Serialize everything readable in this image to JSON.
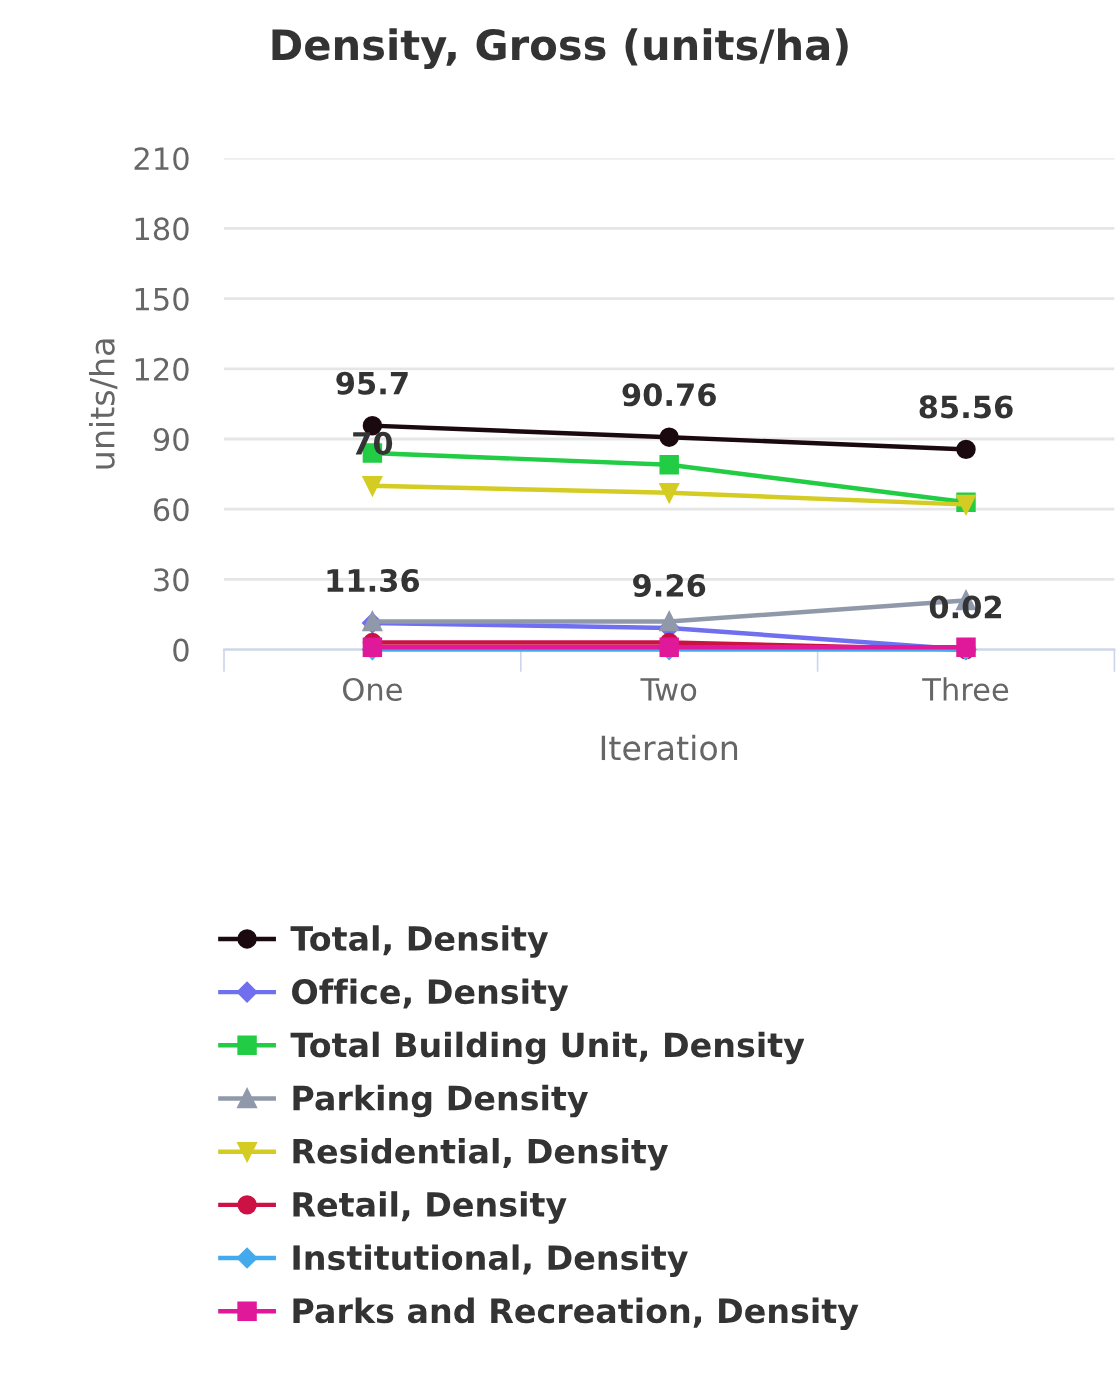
{
  "chart_data": {
    "type": "line",
    "title": "Density, Gross (units/ha)",
    "xlabel": "Iteration",
    "ylabel": "units/ha",
    "categories": [
      "One",
      "Two",
      "Three"
    ],
    "ylim": [
      0,
      210
    ],
    "yticks": [
      0,
      30,
      60,
      90,
      120,
      150,
      180,
      210
    ],
    "grid": "y",
    "legend": "bottom",
    "series": [
      {
        "name": "Total, Density",
        "color": "#1a0a10",
        "marker": "circle",
        "values": [
          95.7,
          90.76,
          85.56
        ],
        "value_labels": [
          "95.7",
          "90.76",
          "85.56"
        ]
      },
      {
        "name": "Office, Density",
        "color": "#6f6fef",
        "marker": "diamond",
        "values": [
          11.36,
          9.26,
          0.02
        ],
        "value_labels": [
          "11.36",
          "9.26",
          "0.02"
        ]
      },
      {
        "name": "Total Building Unit, Density",
        "color": "#22cc44",
        "marker": "square",
        "values": [
          84,
          79,
          63
        ]
      },
      {
        "name": "Parking Density",
        "color": "#9099aa",
        "marker": "triangle",
        "values": [
          12,
          12,
          21
        ]
      },
      {
        "name": "Residential, Density",
        "color": "#d4cc22",
        "marker": "triangle-down",
        "values": [
          70,
          67,
          62
        ],
        "value_labels": [
          "70",
          null,
          null
        ]
      },
      {
        "name": "Retail, Density",
        "color": "#cc1144",
        "marker": "circle",
        "values": [
          3,
          3,
          0
        ]
      },
      {
        "name": "Institutional, Density",
        "color": "#44aaee",
        "marker": "diamond",
        "values": [
          0,
          0,
          0
        ]
      },
      {
        "name": "Parks and Recreation, Density",
        "color": "#e0189a",
        "marker": "square",
        "values": [
          1,
          1,
          1
        ]
      }
    ]
  }
}
